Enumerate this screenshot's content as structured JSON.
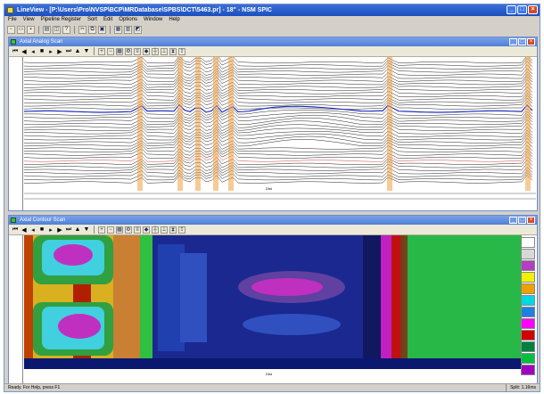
{
  "window": {
    "title": "LineView - [P:\\Users\\Pro\\NVSP\\BCP\\MRDatabase\\SPBS\\DCT\\5463.pr] - 18\" - NSM SPIC",
    "buttons": {
      "minimize": "_",
      "maximize": "□",
      "close": "×"
    }
  },
  "menu": [
    "File",
    "View",
    "Pipeline Register",
    "Sort",
    "Edit",
    "Options",
    "Window",
    "Help"
  ],
  "panels": {
    "top": {
      "title": "Axial Analog Scan",
      "distance_label": "Dist"
    },
    "bottom": {
      "title": "Axial Contour Scan",
      "distance_label": "Dist"
    }
  },
  "status": {
    "left": "Ready. For Help, press F1",
    "right": "Split: 1.16ms"
  },
  "colors": {
    "title_blue": "#1b4fbf",
    "accent_orange": "#f0a040",
    "trace_blue": "#2030c0",
    "trace_red": "#d04040"
  },
  "palette_colors": [
    "#ffffff",
    "#d8d8d8",
    "#b040c0",
    "#f0f000",
    "#f0a000",
    "#00d8e0",
    "#2080e0",
    "#ff00ff",
    "#d00000",
    "#008040",
    "#00c040",
    "#a000c0"
  ]
}
